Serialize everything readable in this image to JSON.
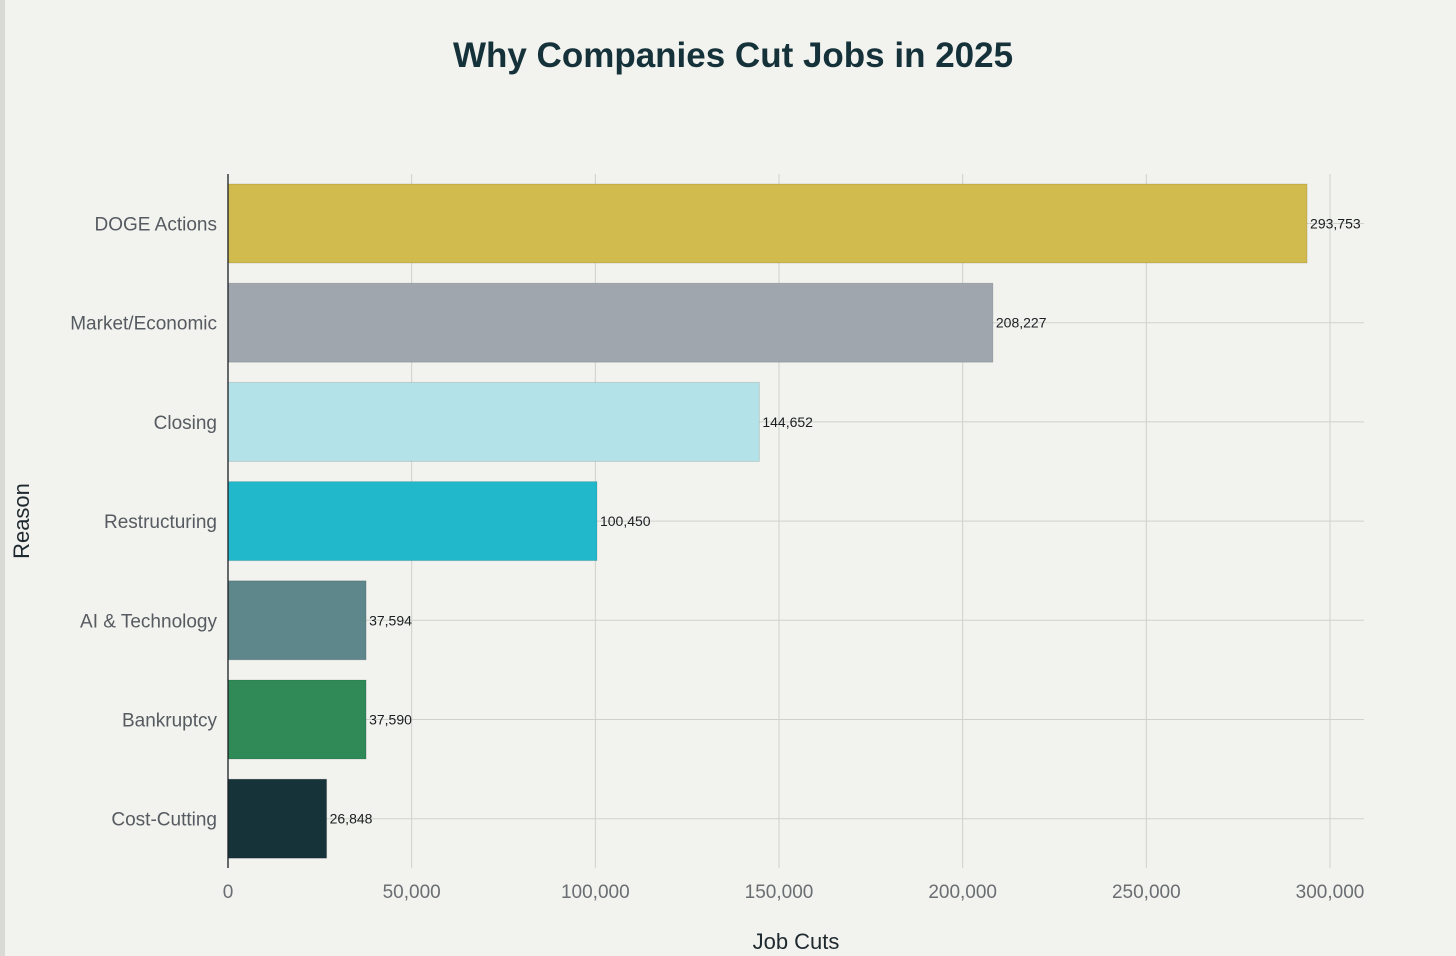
{
  "chart_data": {
    "type": "bar",
    "orientation": "horizontal",
    "title": "Why Companies Cut Jobs in 2025",
    "xlabel": "Job Cuts",
    "ylabel": "Reason",
    "categories": [
      "DOGE Actions",
      "Market/Economic",
      "Closing",
      "Restructuring",
      "AI & Technology",
      "Bankruptcy",
      "Cost-Cutting"
    ],
    "values": [
      293753,
      208227,
      144652,
      100450,
      37594,
      37590,
      26848
    ],
    "value_labels": [
      "293,753",
      "208,227",
      "144,652",
      "100,450",
      "37,594",
      "37,590",
      "26,848"
    ],
    "colors": [
      "#d1bb4e",
      "#9fa6ae",
      "#b3e3e8",
      "#22b8cb",
      "#5d878b",
      "#2f8a58",
      "#17333a"
    ],
    "xlim": [
      0,
      300000
    ],
    "xticks": [
      0,
      50000,
      100000,
      150000,
      200000,
      250000,
      300000
    ],
    "xtick_labels": [
      "0",
      "50,000",
      "100,000",
      "150,000",
      "200,000",
      "250,000",
      "300,000"
    ],
    "grid": true
  }
}
